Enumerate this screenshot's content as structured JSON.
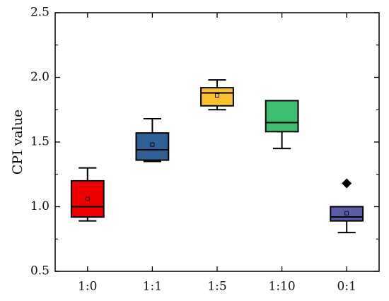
{
  "chart_data": {
    "type": "box",
    "title": "",
    "xlabel": "",
    "ylabel": "CPI value",
    "ylim": [
      0.5,
      2.5
    ],
    "yticks": [
      "0.5",
      "1.0",
      "1.5",
      "2.0",
      "2.5"
    ],
    "ytick_values": [
      0.5,
      1.0,
      1.5,
      2.0,
      2.5
    ],
    "grid": false,
    "categories": [
      "1:0",
      "1:1",
      "1:5",
      "1:10",
      "0:1"
    ],
    "boxes": [
      {
        "category": "1:0",
        "min": 0.89,
        "q1": 0.92,
        "median": 1.0,
        "q3": 1.2,
        "max": 1.3,
        "mean": 1.06,
        "outliers": [],
        "color": "#ee0000"
      },
      {
        "category": "1:1",
        "min": 1.35,
        "q1": 1.36,
        "median": 1.44,
        "q3": 1.57,
        "max": 1.68,
        "mean": 1.48,
        "outliers": [],
        "color": "#2e6096"
      },
      {
        "category": "1:5",
        "min": 1.75,
        "q1": 1.78,
        "median": 1.88,
        "q3": 1.92,
        "max": 1.98,
        "mean": 1.86,
        "outliers": [],
        "color": "#fbc02d"
      },
      {
        "category": "1:10",
        "min": 1.45,
        "q1": 1.58,
        "median": 1.65,
        "q3": 1.82,
        "max": 1.82,
        "mean": null,
        "outliers": [],
        "color": "#3dbd6e"
      },
      {
        "category": "0:1",
        "min": 0.8,
        "q1": 0.89,
        "median": 0.92,
        "q3": 1.0,
        "max": 1.0,
        "mean": 0.95,
        "outliers": [
          1.18
        ],
        "color": "#5b5ea6"
      }
    ]
  }
}
